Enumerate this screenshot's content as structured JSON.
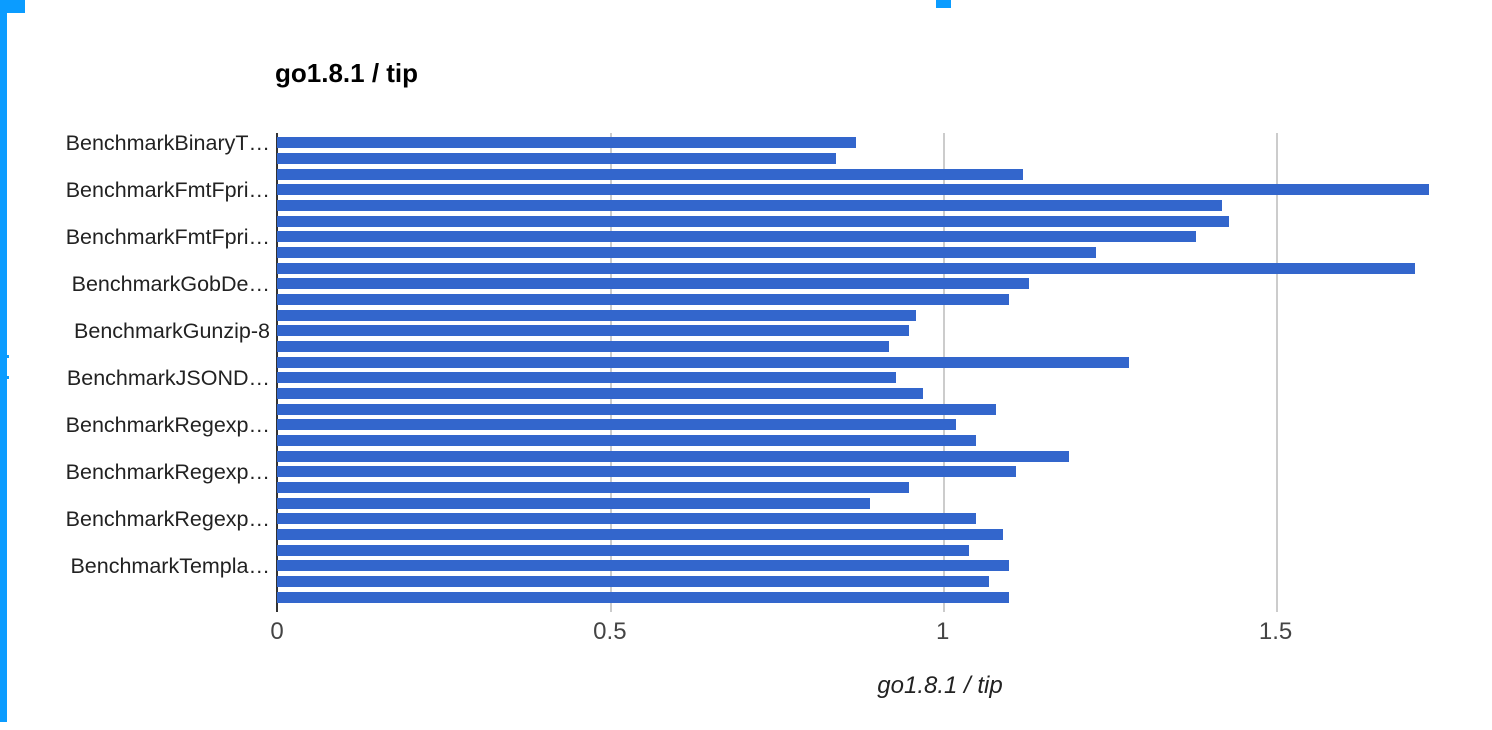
{
  "page": {
    "background_color": "#ffffff"
  },
  "selection": {
    "color": "#0b9cff",
    "note": "spreadsheet selection handles: left edge strip, top-left corner square, small top handle"
  },
  "chart": {
    "title": "go1.8.1 / tip",
    "xaxis_title": "go1.8.1 / tip",
    "bar_color": "#3366cc",
    "axis_line_color": "#333333",
    "gridline_color": "#cccccc",
    "tick_label_color": "#444444",
    "category_label_color": "#222222"
  },
  "chart_data": {
    "type": "bar",
    "orientation": "horizontal",
    "title": "go1.8.1 / tip",
    "xlabel": "go1.8.1 / tip",
    "ylabel": "",
    "xlim": [
      0,
      1.78
    ],
    "xticks": [
      0,
      0.5,
      1,
      1.5
    ],
    "xtick_labels": [
      "0",
      "0.5",
      "1",
      "1.5"
    ],
    "grid": true,
    "legend": "none",
    "series_name": "go1.8.1 / tip",
    "values": [
      0.87,
      0.84,
      1.12,
      1.73,
      1.42,
      1.43,
      1.38,
      1.23,
      1.71,
      1.13,
      1.1,
      0.96,
      0.95,
      0.92,
      1.28,
      0.93,
      0.97,
      1.08,
      1.02,
      1.05,
      1.19,
      1.11,
      0.95,
      0.89,
      1.05,
      1.09,
      1.04,
      1.1,
      1.07,
      1.1
    ],
    "bar_count": 30,
    "visible_category_labels": [
      {
        "bar_index": 0,
        "label": "BenchmarkBinaryT…"
      },
      {
        "bar_index": 3,
        "label": "BenchmarkFmtFpri…"
      },
      {
        "bar_index": 6,
        "label": "BenchmarkFmtFpri…"
      },
      {
        "bar_index": 9,
        "label": "BenchmarkGobDe…"
      },
      {
        "bar_index": 12,
        "label": "BenchmarkGunzip-8"
      },
      {
        "bar_index": 15,
        "label": "BenchmarkJSOND…"
      },
      {
        "bar_index": 18,
        "label": "BenchmarkRegexp…"
      },
      {
        "bar_index": 21,
        "label": "BenchmarkRegexp…"
      },
      {
        "bar_index": 24,
        "label": "BenchmarkRegexp…"
      },
      {
        "bar_index": 27,
        "label": "BenchmarkTempla…"
      }
    ]
  }
}
